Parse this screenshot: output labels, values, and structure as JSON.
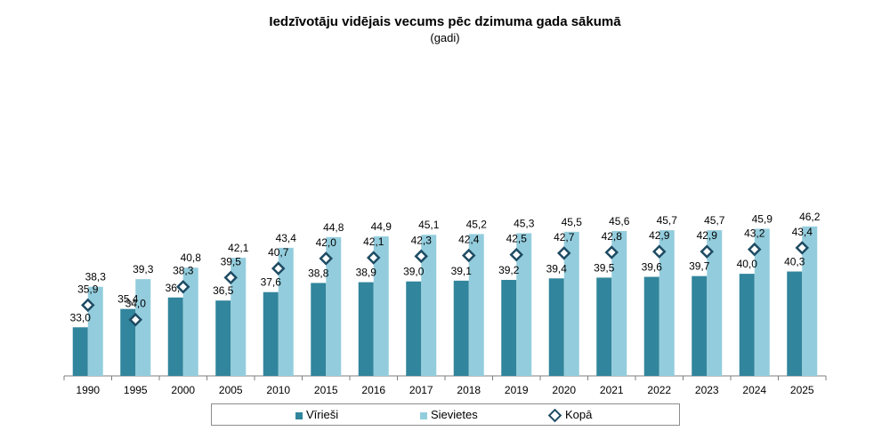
{
  "chart_data": {
    "type": "bar",
    "title": "Iedzīvotāju vidējais vecums pēc dzimuma gada sākumā",
    "subtitle": "(gadi)",
    "categories": [
      "1990",
      "1995",
      "2000",
      "2005",
      "2010",
      "2015",
      "2016",
      "2017",
      "2018",
      "2019",
      "2020",
      "2021",
      "2022",
      "2023",
      "2024",
      "2025"
    ],
    "series": [
      {
        "name": "Vīrieši",
        "kind": "bar",
        "color": "#31859c",
        "values": [
          33.0,
          35.4,
          36.9,
          36.5,
          37.6,
          38.8,
          38.9,
          39.0,
          39.1,
          39.2,
          39.4,
          39.5,
          39.6,
          39.7,
          40.0,
          40.3
        ],
        "labels": [
          "33,0",
          "35,4",
          "36,9",
          "36,5",
          "37,6",
          "38,8",
          "38,9",
          "39,0",
          "39,1",
          "39,2",
          "39,4",
          "39,5",
          "39,6",
          "39,7",
          "40,0",
          "40,3"
        ]
      },
      {
        "name": "Sievietes",
        "kind": "bar",
        "color": "#93cddd",
        "values": [
          38.3,
          39.3,
          40.8,
          42.1,
          43.4,
          44.8,
          44.9,
          45.1,
          45.2,
          45.3,
          45.5,
          45.6,
          45.7,
          45.7,
          45.9,
          46.2
        ],
        "labels": [
          "38,3",
          "39,3",
          "40,8",
          "42,1",
          "43,4",
          "44,8",
          "44,9",
          "45,1",
          "45,2",
          "45,3",
          "45,5",
          "45,6",
          "45,7",
          "45,7",
          "45,9",
          "46,2"
        ]
      },
      {
        "name": "Kopā",
        "kind": "marker",
        "color": "#1e4b63",
        "values": [
          35.9,
          34.0,
          38.3,
          39.5,
          40.7,
          42.0,
          42.1,
          42.3,
          42.4,
          42.5,
          42.7,
          42.8,
          42.9,
          42.9,
          43.2,
          43.4
        ],
        "labels": [
          "35,9",
          "34,0",
          "38,3",
          "39,5",
          "40,7",
          "42,0",
          "42,1",
          "42,3",
          "42,4",
          "42,5",
          "42,7",
          "42,8",
          "42,9",
          "42,9",
          "43,2",
          "43,4"
        ]
      }
    ],
    "legend": [
      "Vīrieši",
      "Sievietes",
      "Kopā"
    ],
    "legend_position": "bottom"
  }
}
